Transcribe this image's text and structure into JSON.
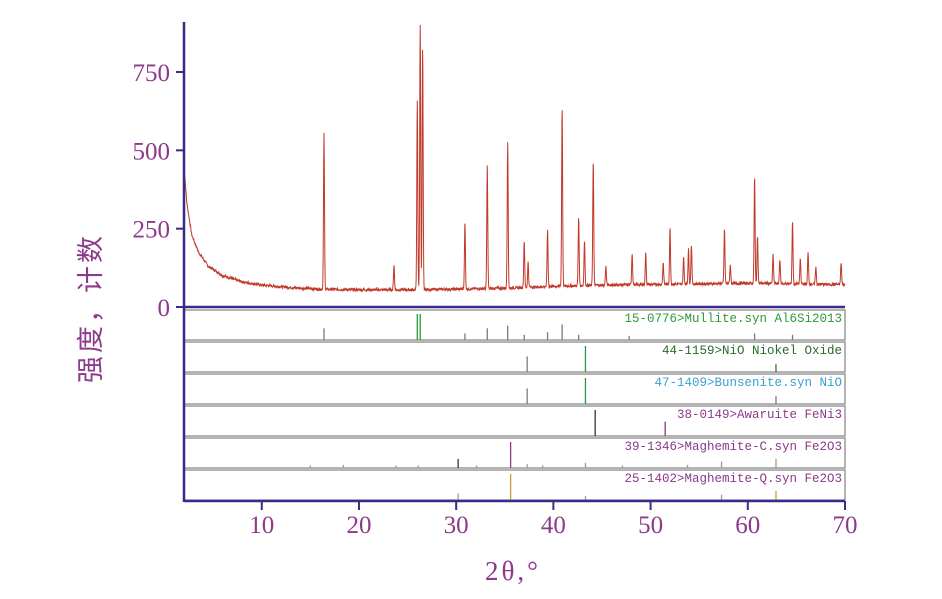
{
  "chart_data": {
    "type": "line",
    "xlabel": "2θ,°",
    "ylabel": "强度，计数",
    "xlim": [
      2,
      70
    ],
    "ylim": [
      0,
      900
    ],
    "x_ticks": [
      10,
      20,
      30,
      40,
      50,
      60,
      70
    ],
    "y_ticks": [
      0,
      250,
      500,
      750
    ],
    "colors": {
      "axis": "#3b2a8c",
      "text": "#8c3a8a",
      "pattern": "#c0392b"
    },
    "series": [
      {
        "baseline": [
          [
            2,
            450
          ],
          [
            2.3,
            330
          ],
          [
            2.8,
            230
          ],
          [
            3.5,
            175
          ],
          [
            4.5,
            130
          ],
          [
            6,
            100
          ],
          [
            8,
            80
          ],
          [
            10,
            70
          ],
          [
            13,
            62
          ],
          [
            16,
            57
          ],
          [
            20,
            55
          ],
          [
            25,
            55
          ],
          [
            30,
            57
          ],
          [
            35,
            60
          ],
          [
            40,
            66
          ],
          [
            45,
            70
          ],
          [
            50,
            72
          ],
          [
            55,
            74
          ],
          [
            60,
            76
          ],
          [
            65,
            74
          ],
          [
            68,
            72
          ],
          [
            70,
            72
          ]
        ],
        "peaks": [
          [
            16.4,
            495
          ],
          [
            23.6,
            80
          ],
          [
            26.0,
            600
          ],
          [
            26.3,
            870
          ],
          [
            26.55,
            780
          ],
          [
            30.9,
            210
          ],
          [
            33.2,
            390
          ],
          [
            35.3,
            470
          ],
          [
            37.0,
            150
          ],
          [
            37.4,
            80
          ],
          [
            39.4,
            180
          ],
          [
            40.9,
            575
          ],
          [
            42.6,
            220
          ],
          [
            43.2,
            145
          ],
          [
            44.1,
            400
          ],
          [
            45.4,
            60
          ],
          [
            48.1,
            100
          ],
          [
            49.5,
            100
          ],
          [
            51.3,
            70
          ],
          [
            52.0,
            180
          ],
          [
            53.4,
            85
          ],
          [
            53.9,
            110
          ],
          [
            54.2,
            125
          ],
          [
            57.6,
            175
          ],
          [
            58.2,
            60
          ],
          [
            60.7,
            340
          ],
          [
            61.0,
            150
          ],
          [
            62.6,
            90
          ],
          [
            63.3,
            80
          ],
          [
            64.6,
            200
          ],
          [
            65.4,
            80
          ],
          [
            66.2,
            100
          ],
          [
            67.0,
            55
          ],
          [
            69.6,
            70
          ]
        ]
      }
    ],
    "reference_patterns": [
      {
        "name": "15-0776>Mullite.syn Al6Si2013",
        "label_color": "#2a9a3a",
        "lines": [
          [
            16.4,
            "#7a7a7a",
            0.45
          ],
          [
            26.0,
            "#2a9a3a",
            1.0
          ],
          [
            26.3,
            "#2a9a3a",
            1.0
          ],
          [
            30.9,
            "#7a7a7a",
            0.25
          ],
          [
            33.2,
            "#7a7a7a",
            0.45
          ],
          [
            35.3,
            "#7a7a7a",
            0.55
          ],
          [
            37.0,
            "#7a7a7a",
            0.2
          ],
          [
            39.4,
            "#7a7a7a",
            0.3
          ],
          [
            40.9,
            "#7a7a7a",
            0.6
          ],
          [
            42.6,
            "#7a7a7a",
            0.2
          ],
          [
            47.8,
            "#7a7a7a",
            0.15
          ],
          [
            60.7,
            "#7a7a7a",
            0.25
          ],
          [
            64.6,
            "#7a7a7a",
            0.2
          ]
        ]
      },
      {
        "name": "44-1159>NiO Niokel Oxide",
        "label_color": "#2a6a2a",
        "lines": [
          [
            37.3,
            "#7a7a7a",
            0.6
          ],
          [
            43.3,
            "#2a9a3a",
            1.0
          ],
          [
            62.9,
            "#5a5a2a",
            0.3
          ]
        ]
      },
      {
        "name": "47-1409>Bunsenite.syn NiO",
        "label_color": "#3aa0d0",
        "lines": [
          [
            37.3,
            "#7a7a7a",
            0.6
          ],
          [
            43.3,
            "#2a9a3a",
            1.0
          ],
          [
            62.9,
            "#7a7a7a",
            0.3
          ]
        ]
      },
      {
        "name": "38-0149>Awaruite FeNi3",
        "label_color": "#8c3a8a",
        "lines": [
          [
            44.3,
            "#333333",
            1.0
          ],
          [
            51.5,
            "#8c3a8a",
            0.55
          ]
        ]
      },
      {
        "name": "39-1346>Maghemite-C.syn Fe2O3",
        "label_color": "#8c3a8a",
        "lines": [
          [
            15.0,
            "#9a9a9a",
            0.1
          ],
          [
            18.4,
            "#9a9a9a",
            0.12
          ],
          [
            23.8,
            "#9a9a9a",
            0.1
          ],
          [
            26.1,
            "#9a9a9a",
            0.1
          ],
          [
            30.2,
            "#333333",
            0.35
          ],
          [
            32.1,
            "#9a9a9a",
            0.1
          ],
          [
            35.6,
            "#8c3a8a",
            1.0
          ],
          [
            37.3,
            "#9a9a9a",
            0.15
          ],
          [
            38.9,
            "#9a9a9a",
            0.1
          ],
          [
            43.3,
            "#9a9a9a",
            0.2
          ],
          [
            47.1,
            "#9a9a9a",
            0.1
          ],
          [
            53.8,
            "#9a9a9a",
            0.12
          ],
          [
            57.3,
            "#9a9a9a",
            0.25
          ],
          [
            62.9,
            "#9a9a9a",
            0.35
          ]
        ]
      },
      {
        "name": "25-1402>Maghemite-Q.syn Fe2O3",
        "label_color": "#8c3a8a",
        "lines": [
          [
            30.2,
            "#9a9a9a",
            0.25
          ],
          [
            35.6,
            "#c89a3a",
            1.0
          ],
          [
            43.3,
            "#9a9a9a",
            0.15
          ],
          [
            57.3,
            "#9a9a9a",
            0.2
          ],
          [
            62.9,
            "#c89a3a",
            0.35
          ]
        ]
      }
    ]
  }
}
